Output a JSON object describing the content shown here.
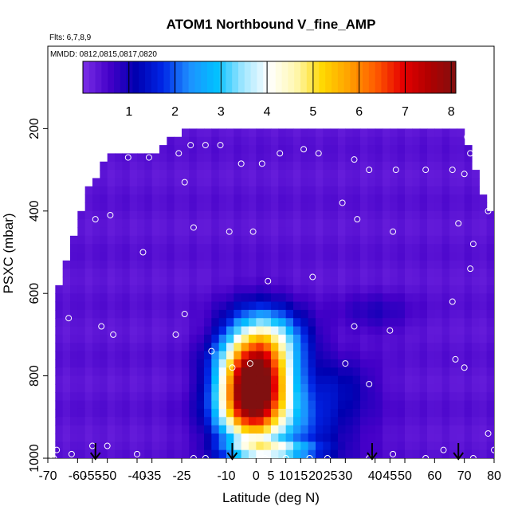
{
  "chart_data": {
    "type": "heatmap",
    "title": "ATOM1 Northbound V_fine_AMP",
    "flights_label": "Flts: 6,7,8,9",
    "dates_label": "MMDD: 0812,0815,0817,0820",
    "xlabel": "Latitude (deg N)",
    "ylabel": "PSXC (mbar)",
    "xlim": [
      -70,
      80
    ],
    "ylim": [
      1000,
      0
    ],
    "x_ticks": [
      -70,
      -60,
      -55,
      -50,
      -40,
      -35,
      -25,
      -10,
      0,
      5,
      10,
      15,
      20,
      25,
      30,
      40,
      45,
      50,
      60,
      70,
      80
    ],
    "x_tick_labels": [
      "-70",
      "-60",
      "-55",
      "-50",
      "-40",
      "-35",
      "-25",
      "-10",
      "0",
      "5",
      "10",
      "15",
      "20",
      "25",
      "30",
      "40",
      "45",
      "50",
      "60",
      "70",
      "80"
    ],
    "y_ticks": [
      200,
      400,
      600,
      800,
      1000
    ],
    "y_tick_labels": [
      "200",
      "400",
      "600",
      "800",
      "1000"
    ],
    "colorbar": {
      "min": 0,
      "max": 8.1,
      "ticks": [
        1,
        2,
        3,
        4,
        5,
        6,
        7,
        8
      ],
      "tick_labels": [
        "1",
        "2",
        "3",
        "4",
        "5",
        "6",
        "7",
        "8"
      ],
      "colors": [
        "#7b2fe6",
        "#4400c8",
        "#0000b0",
        "#0026e6",
        "#1e90ff",
        "#00bfff",
        "#9fe6ff",
        "#ffffff",
        "#fff8b0",
        "#ffd700",
        "#ffa000",
        "#ff5a00",
        "#e60000",
        "#b00000",
        "#801010"
      ]
    },
    "arrows_lat": [
      -54,
      -8,
      39,
      68
    ],
    "curtain_top": [
      [
        -68,
        640
      ],
      [
        -64,
        520
      ],
      [
        -60,
        420
      ],
      [
        -57,
        350
      ],
      [
        -50,
        270
      ],
      [
        -45,
        270
      ],
      [
        -40,
        270
      ],
      [
        -35,
        270
      ],
      [
        -29,
        230
      ],
      [
        -26,
        210
      ],
      [
        10,
        210
      ],
      [
        70,
        210
      ],
      [
        76,
        360
      ],
      [
        80,
        410
      ],
      [
        80,
        1000
      ],
      [
        -68,
        1000
      ]
    ],
    "plume": [
      {
        "lat": 0,
        "p": 800,
        "sx": 12,
        "sy": 120,
        "v": 7.6
      },
      {
        "lat": -3,
        "p": 880,
        "sx": 10,
        "sy": 90,
        "v": 2.5
      },
      {
        "lat": 10,
        "p": 930,
        "sx": 22,
        "sy": 90,
        "v": 1.5
      },
      {
        "lat": 8,
        "p": 700,
        "sx": 12,
        "sy": 60,
        "v": 1.2
      },
      {
        "lat": 28,
        "p": 820,
        "sx": 12,
        "sy": 60,
        "v": 0.8
      },
      {
        "lat": 40,
        "p": 650,
        "sx": 12,
        "sy": 50,
        "v": 0.5
      }
    ],
    "samples": [
      {
        "lat": -68,
        "p": 1000
      },
      {
        "lat": -67,
        "p": 980
      },
      {
        "lat": -62,
        "p": 990
      },
      {
        "lat": -55,
        "p": 970
      },
      {
        "lat": -50,
        "p": 970
      },
      {
        "lat": -63,
        "p": 660
      },
      {
        "lat": -52,
        "p": 680
      },
      {
        "lat": -48,
        "p": 700
      },
      {
        "lat": -27,
        "p": 700
      },
      {
        "lat": -24,
        "p": 650
      },
      {
        "lat": -15,
        "p": 740
      },
      {
        "lat": -8,
        "p": 780
      },
      {
        "lat": -2,
        "p": 770
      },
      {
        "lat": 30,
        "p": 770
      },
      {
        "lat": 38,
        "p": 820
      },
      {
        "lat": 45,
        "p": 690
      },
      {
        "lat": 70,
        "p": 780
      },
      {
        "lat": 67,
        "p": 760
      },
      {
        "lat": 66,
        "p": 620
      },
      {
        "lat": 72,
        "p": 540
      },
      {
        "lat": 73,
        "p": 480
      },
      {
        "lat": 68,
        "p": 430
      },
      {
        "lat": 78,
        "p": 400
      },
      {
        "lat": 70,
        "p": 310
      },
      {
        "lat": 72,
        "p": 260
      },
      {
        "lat": 71,
        "p": 220
      },
      {
        "lat": 66,
        "p": 300
      },
      {
        "lat": 57,
        "p": 300
      },
      {
        "lat": 47,
        "p": 300
      },
      {
        "lat": 38,
        "p": 300
      },
      {
        "lat": 33,
        "p": 275
      },
      {
        "lat": 21,
        "p": 260
      },
      {
        "lat": 16,
        "p": 250
      },
      {
        "lat": 8,
        "p": 260
      },
      {
        "lat": 2,
        "p": 285
      },
      {
        "lat": -5,
        "p": 285
      },
      {
        "lat": -12,
        "p": 240
      },
      {
        "lat": -17,
        "p": 240
      },
      {
        "lat": -22,
        "p": 240
      },
      {
        "lat": -26,
        "p": 260
      },
      {
        "lat": -24,
        "p": 330
      },
      {
        "lat": -36,
        "p": 270
      },
      {
        "lat": -43,
        "p": 270
      },
      {
        "lat": -57,
        "p": 300
      },
      {
        "lat": -54,
        "p": 420
      },
      {
        "lat": -49,
        "p": 410
      },
      {
        "lat": -38,
        "p": 500
      },
      {
        "lat": -21,
        "p": 440
      },
      {
        "lat": -9,
        "p": 450
      },
      {
        "lat": -1,
        "p": 450
      },
      {
        "lat": 4,
        "p": 570
      },
      {
        "lat": 19,
        "p": 560
      },
      {
        "lat": 29,
        "p": 380
      },
      {
        "lat": 34,
        "p": 420
      },
      {
        "lat": 46,
        "p": 450
      },
      {
        "lat": 33,
        "p": 680
      },
      {
        "lat": 38,
        "p": 1000
      },
      {
        "lat": 46,
        "p": 990
      },
      {
        "lat": 57,
        "p": 1000
      },
      {
        "lat": 73,
        "p": 1000
      },
      {
        "lat": 78,
        "p": 940
      },
      {
        "lat": 80,
        "p": 980
      },
      {
        "lat": 63,
        "p": 980
      },
      {
        "lat": 10,
        "p": 1000
      },
      {
        "lat": 3,
        "p": 1000
      },
      {
        "lat": 24,
        "p": 1000
      },
      {
        "lat": 18,
        "p": 1000
      },
      {
        "lat": -17,
        "p": 1000
      },
      {
        "lat": -21,
        "p": 1000
      },
      {
        "lat": -40,
        "p": 990
      }
    ]
  }
}
